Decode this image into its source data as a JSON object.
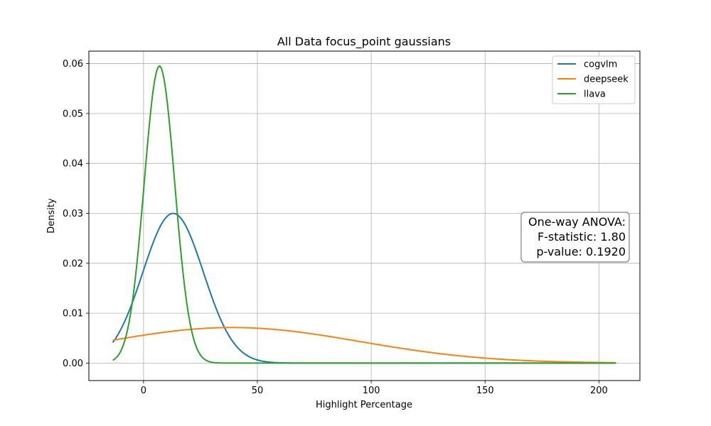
{
  "chart_data": {
    "type": "line",
    "title": "All Data focus_point gaussians",
    "xlabel": "Highlight Percentage",
    "ylabel": "Density",
    "xlim": [
      -24,
      218
    ],
    "ylim": [
      -0.0035,
      0.0625
    ],
    "xticks": [
      0,
      50,
      100,
      150,
      200
    ],
    "yticks": [
      0.0,
      0.01,
      0.02,
      0.03,
      0.04,
      0.05,
      0.06
    ],
    "ytick_labels": [
      "0.00",
      "0.01",
      "0.02",
      "0.03",
      "0.04",
      "0.05",
      "0.06"
    ],
    "x_range": [
      -13.5,
      207.5
    ],
    "grid": true,
    "legend_position": "top-right",
    "series": [
      {
        "name": "cogvlm",
        "color": "#1f77b4",
        "mean": 13.0,
        "std": 13.3
      },
      {
        "name": "deepseek",
        "color": "#ff7f0e",
        "mean": 39.0,
        "std": 56.0
      },
      {
        "name": "llava",
        "color": "#2ca02c",
        "mean": 7.0,
        "std": 6.7
      }
    ],
    "annotation": {
      "lines": [
        "One-way ANOVA:",
        "F-statistic: 1.80",
        "p-value: 0.1920"
      ],
      "position": "right-middle"
    }
  }
}
